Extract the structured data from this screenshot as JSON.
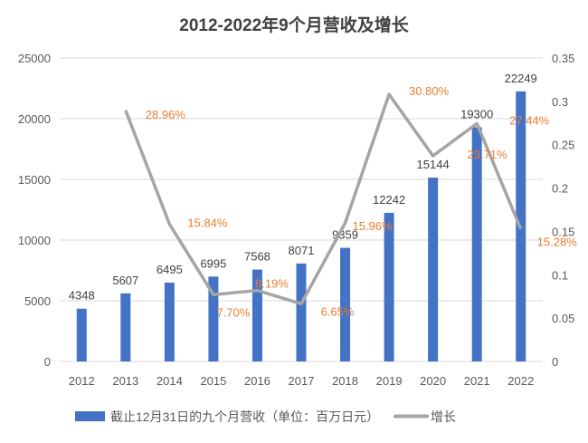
{
  "chart_data": {
    "type": "bar+line",
    "title": "2012-2022年9个月营收及增长",
    "categories": [
      "2012",
      "2013",
      "2014",
      "2015",
      "2016",
      "2017",
      "2018",
      "2019",
      "2020",
      "2021",
      "2022"
    ],
    "series": [
      {
        "name": "截止12月31日的九个月营收（单位：百万日元）",
        "type": "bar",
        "axis": "left",
        "color": "#4472C4",
        "values": [
          4348,
          5607,
          6495,
          6995,
          7568,
          8071,
          9359,
          12242,
          15144,
          19300,
          22249
        ],
        "labels": [
          "4348",
          "5607",
          "6495",
          "6995",
          "7568",
          "8071",
          "9359",
          "12242",
          "15144",
          "19300",
          "22249"
        ]
      },
      {
        "name": "增长",
        "type": "line",
        "axis": "right",
        "color": "#A5A5A5",
        "values": [
          null,
          0.2896,
          0.1584,
          0.077,
          0.0819,
          0.0665,
          0.1596,
          0.308,
          0.2371,
          0.2744,
          0.1528
        ],
        "labels": [
          null,
          "28.96%",
          "15.84%",
          "7.70%",
          "8.19%",
          "6.65%",
          "15.96%",
          "30.80%",
          "23.71%",
          "27.44%",
          "15.28%"
        ],
        "label_color": "#ED7D31"
      }
    ],
    "left_axis": {
      "ylim": [
        0,
        25000
      ],
      "ticks": [
        "0",
        "5000",
        "10000",
        "15000",
        "20000",
        "25000"
      ]
    },
    "right_axis": {
      "ylim": [
        0,
        0.35
      ],
      "ticks": [
        "0",
        "0.05",
        "0.1",
        "0.15",
        "0.2",
        "0.25",
        "0.3",
        "0.35"
      ]
    },
    "grid": true,
    "legend": "bottom"
  }
}
